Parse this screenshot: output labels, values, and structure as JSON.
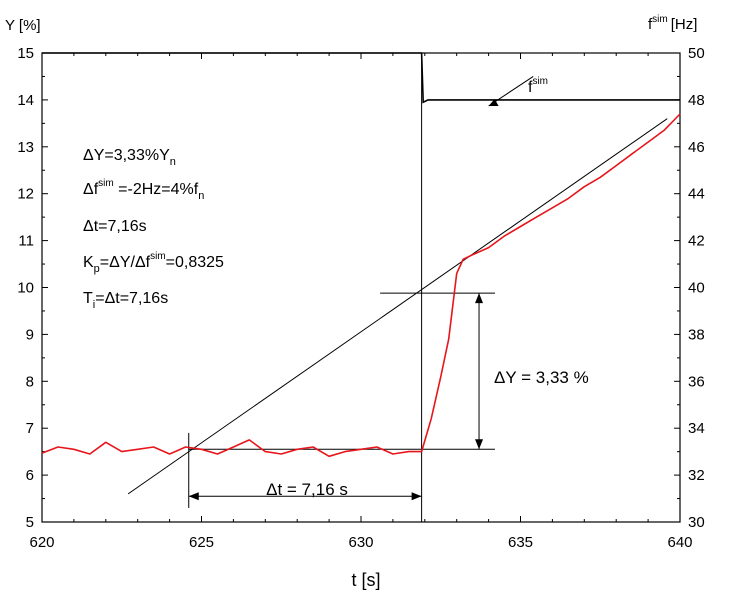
{
  "chart_data": {
    "type": "line",
    "xlabel": "t [s]",
    "ylabel_left": "Y [%]",
    "ylabel_right": "f",
    "ylabel_right_sup": "sim",
    "ylabel_right_unit": "[Hz]",
    "xlim": [
      620,
      640
    ],
    "ylim_left": [
      5,
      15
    ],
    "ylim_right": [
      30,
      50
    ],
    "x_ticks": [
      "620",
      "625",
      "630",
      "635",
      "640"
    ],
    "y_ticks_left": [
      "5",
      "6",
      "7",
      "8",
      "9",
      "10",
      "11",
      "12",
      "13",
      "14",
      "15"
    ],
    "y_ticks_right": [
      "30",
      "32",
      "34",
      "36",
      "38",
      "40",
      "42",
      "44",
      "46",
      "48",
      "50"
    ],
    "grid": false,
    "colors": {
      "Y": "#e8151b",
      "f_sim": "#000000",
      "construction": "#000000"
    },
    "series": [
      {
        "axis": "left",
        "x": [
          620.0,
          620.5,
          621.0,
          621.5,
          622.0,
          622.5,
          623.0,
          623.5,
          624.0,
          624.5,
          625.0,
          625.5,
          626.0,
          626.5,
          627.0,
          627.5,
          628.0,
          628.5,
          629.0,
          629.5,
          630.0,
          630.5,
          631.0,
          631.5,
          631.9,
          632.2,
          632.5,
          632.75,
          633.0,
          633.2,
          633.5,
          634.0,
          634.5,
          635.0,
          635.5,
          636.0,
          636.5,
          637.0,
          637.5,
          638.0,
          638.5,
          639.0,
          639.5,
          640.0
        ],
        "values": [
          6.47,
          6.6,
          6.55,
          6.45,
          6.7,
          6.5,
          6.55,
          6.6,
          6.45,
          6.6,
          6.55,
          6.45,
          6.6,
          6.75,
          6.5,
          6.45,
          6.55,
          6.6,
          6.4,
          6.5,
          6.55,
          6.6,
          6.45,
          6.5,
          6.5,
          7.2,
          8.1,
          8.9,
          10.3,
          10.6,
          10.7,
          10.85,
          11.1,
          11.3,
          11.5,
          11.7,
          11.9,
          12.15,
          12.35,
          12.6,
          12.85,
          13.1,
          13.35,
          13.7
        ]
      },
      {
        "axis": "right",
        "x": [
          620.0,
          631.9,
          631.95,
          632.1,
          640.0
        ],
        "values": [
          50.0,
          50.0,
          47.9,
          48.0,
          48.0
        ]
      }
    ],
    "annotations": {
      "f_label": "f",
      "f_label_sup": "sim",
      "dY_line1": "ΔY=3,33%Y",
      "dY_line1_sub": "n",
      "df_line_a": "Δf",
      "df_line_a_sup": "sim",
      "df_line_b": " =-2Hz=4%f",
      "df_line_b_sub": "n",
      "dt_line": "Δt=7,16s",
      "kp_a": "K",
      "kp_a_sub": "p",
      "kp_b": "=ΔY/Δf",
      "kp_b_sup": "sim",
      "kp_c": "=0,8325",
      "ti_a": "T",
      "ti_a_sub": "i",
      "ti_b": "=Δt=7,16s",
      "dy_measure": "ΔY = 3,33 %",
      "dt_measure": "Δt = 7,16 s"
    }
  }
}
